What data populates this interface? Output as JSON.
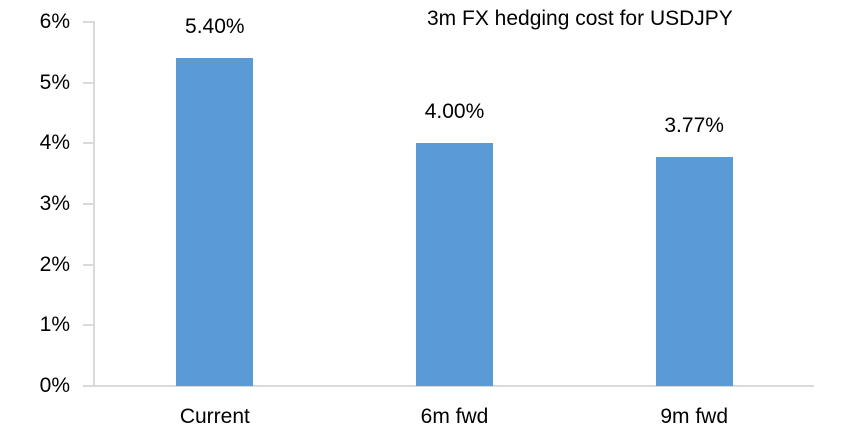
{
  "chart_data": {
    "type": "bar",
    "title": "3m FX hedging cost for USDJPY",
    "categories": [
      "Current",
      "6m fwd",
      "9m fwd"
    ],
    "values": [
      5.4,
      4.0,
      3.77
    ],
    "value_labels": [
      "5.40%",
      "4.00%",
      "3.77%"
    ],
    "xlabel": "",
    "ylabel": "",
    "ylim": [
      0,
      6
    ],
    "ytick_step": 1,
    "ytick_labels": [
      "0%",
      "1%",
      "2%",
      "3%",
      "4%",
      "5%",
      "6%"
    ],
    "grid": false,
    "legend_position": "none",
    "colors": {
      "bar": "#5B9BD5",
      "axis": "#D9D9D9",
      "text": "#000000",
      "background": "#FFFFFF"
    }
  }
}
